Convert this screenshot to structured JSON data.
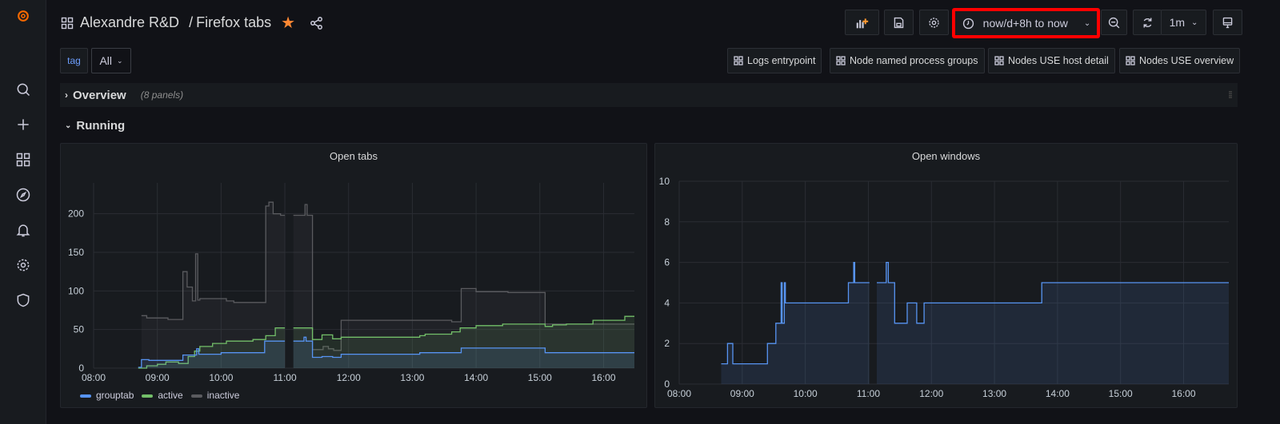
{
  "header": {
    "folder": "Alexandre R&D",
    "separator": "/",
    "dashboard": "Firefox tabs",
    "starred": true,
    "time_range": "now/d+8h to now",
    "refresh_interval": "1m"
  },
  "variables": {
    "tag_label": "tag",
    "tag_value": "All"
  },
  "links": [
    "Logs entrypoint",
    "Node named process groups",
    "Nodes USE host detail",
    "Nodes USE overview"
  ],
  "rows": [
    {
      "title": "Overview",
      "collapsed": true,
      "note": "(8 panels)"
    },
    {
      "title": "Running",
      "collapsed": false
    }
  ],
  "colors": {
    "highlight": "#ff0000",
    "star": "#ff8833",
    "grouptab": "#5794f2",
    "active": "#73bf69",
    "inactive": "#5a5b5f"
  },
  "chart_data": [
    {
      "type": "line",
      "title": "Open tabs",
      "x_ticks": [
        "08:00",
        "09:00",
        "10:00",
        "11:00",
        "12:00",
        "13:00",
        "14:00",
        "15:00",
        "16:00"
      ],
      "y_ticks": [
        "0",
        "50",
        "100",
        "150",
        "200"
      ],
      "xlim": [
        "08:00",
        "16:29"
      ],
      "ylim": [
        0,
        240
      ],
      "grid": true,
      "legend": "bottom-left",
      "series": [
        {
          "name": "grouptab",
          "color": "#5794f2",
          "points": [
            [
              "08:42",
              1
            ],
            [
              "08:45",
              11
            ],
            [
              "08:52",
              10
            ],
            [
              "09:24",
              17
            ],
            [
              "09:37",
              25
            ],
            [
              "09:39",
              18
            ],
            [
              "10:00",
              20
            ],
            [
              "10:41",
              35
            ],
            [
              "11:00",
              null
            ],
            [
              "11:08",
              35
            ],
            [
              "11:18",
              40
            ],
            [
              "11:20",
              35
            ],
            [
              "11:26",
              14
            ],
            [
              "11:35",
              15
            ],
            [
              "11:45",
              14
            ],
            [
              "11:53",
              18
            ],
            [
              "13:07",
              20
            ],
            [
              "13:46",
              26
            ],
            [
              "15:05",
              20
            ],
            [
              "16:29",
              20
            ]
          ]
        },
        {
          "name": "active",
          "color": "#73bf69",
          "points": [
            [
              "08:42",
              0
            ],
            [
              "08:50",
              3
            ],
            [
              "09:00",
              5
            ],
            [
              "09:08",
              8
            ],
            [
              "09:20",
              6
            ],
            [
              "09:29",
              15
            ],
            [
              "09:35",
              22
            ],
            [
              "09:40",
              28
            ],
            [
              "09:52",
              32
            ],
            [
              "10:05",
              35
            ],
            [
              "10:30",
              37
            ],
            [
              "10:42",
              42
            ],
            [
              "10:51",
              52
            ],
            [
              "11:00",
              null
            ],
            [
              "11:08",
              52
            ],
            [
              "11:26",
              37
            ],
            [
              "11:35",
              43
            ],
            [
              "11:45",
              38
            ],
            [
              "11:53",
              40
            ],
            [
              "13:07",
              42
            ],
            [
              "13:12",
              44
            ],
            [
              "13:37",
              47
            ],
            [
              "13:45",
              52
            ],
            [
              "14:00",
              55
            ],
            [
              "14:25",
              57
            ],
            [
              "15:05",
              54
            ],
            [
              "15:12",
              56
            ],
            [
              "15:25",
              57
            ],
            [
              "15:50",
              62
            ],
            [
              "16:20",
              67
            ],
            [
              "16:29",
              67
            ]
          ]
        },
        {
          "name": "inactive",
          "color": "#5a5b5f",
          "points": [
            [
              "08:45",
              68
            ],
            [
              "08:50",
              65
            ],
            [
              "09:10",
              63
            ],
            [
              "09:24",
              125
            ],
            [
              "09:28",
              105
            ],
            [
              "09:33",
              87
            ],
            [
              "09:36",
              148
            ],
            [
              "09:38",
              88
            ],
            [
              "09:40",
              90
            ],
            [
              "10:05",
              87
            ],
            [
              "10:12",
              85
            ],
            [
              "10:42",
              210
            ],
            [
              "10:45",
              215
            ],
            [
              "10:49",
              200
            ],
            [
              "10:56",
              198
            ],
            [
              "11:00",
              null
            ],
            [
              "11:08",
              198
            ],
            [
              "11:19",
              212
            ],
            [
              "11:21",
              198
            ],
            [
              "11:26",
              24
            ],
            [
              "11:36",
              28
            ],
            [
              "11:41",
              25
            ],
            [
              "11:46",
              23
            ],
            [
              "11:53",
              62
            ],
            [
              "13:37",
              60
            ],
            [
              "13:46",
              103
            ],
            [
              "14:00",
              99
            ],
            [
              "14:30",
              98
            ],
            [
              "15:05",
              57
            ],
            [
              "16:29",
              57
            ]
          ]
        }
      ]
    },
    {
      "type": "line",
      "title": "Open windows",
      "x_ticks": [
        "08:00",
        "09:00",
        "10:00",
        "11:00",
        "12:00",
        "13:00",
        "14:00",
        "15:00",
        "16:00"
      ],
      "y_ticks": [
        "0",
        "2",
        "4",
        "6",
        "8",
        "10"
      ],
      "xlim": [
        "08:00",
        "16:43"
      ],
      "ylim": [
        0,
        10
      ],
      "grid": true,
      "series": [
        {
          "color": "#5794f2",
          "points": [
            [
              "08:40",
              1
            ],
            [
              "08:46",
              2
            ],
            [
              "08:51",
              1
            ],
            [
              "09:24",
              2
            ],
            [
              "09:32",
              3
            ],
            [
              "09:37",
              5
            ],
            [
              "09:38",
              3
            ],
            [
              "09:40",
              5
            ],
            [
              "09:41",
              4
            ],
            [
              "10:41",
              5
            ],
            [
              "10:46",
              6
            ],
            [
              "10:47",
              5
            ],
            [
              "11:01",
              null
            ],
            [
              "11:08",
              5
            ],
            [
              "11:17",
              6
            ],
            [
              "11:19",
              5
            ],
            [
              "11:25",
              3
            ],
            [
              "11:37",
              4
            ],
            [
              "11:46",
              3
            ],
            [
              "11:53",
              4
            ],
            [
              "13:45",
              5
            ],
            [
              "16:43",
              5
            ]
          ]
        }
      ]
    }
  ]
}
